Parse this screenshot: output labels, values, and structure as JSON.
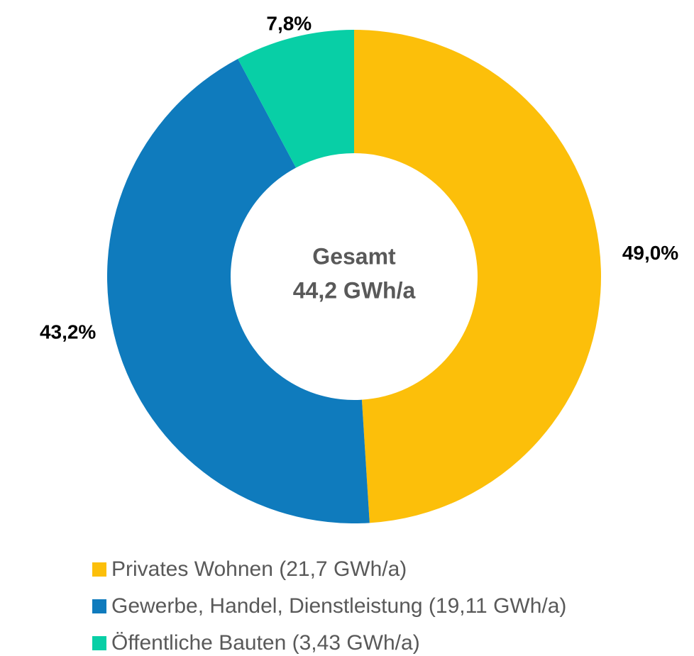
{
  "chart_data": {
    "type": "donut",
    "categories": [
      "Privates Wohnen (21,7 GWh/a)",
      "Gewerbe, Handel, Dienstleistung (19,11 GWh/a)",
      "Öffentliche Bauten (3,43 GWh/a)"
    ],
    "values": [
      49.0,
      43.2,
      7.8
    ],
    "value_labels": [
      "49,0%",
      "43,2%",
      "7,8%"
    ],
    "colors": [
      "#fcbf0a",
      "#0f7bbd",
      "#08cfa6"
    ],
    "center_text": [
      "Gesamt",
      "44,2 GWh/a"
    ],
    "legend": "bottom"
  }
}
